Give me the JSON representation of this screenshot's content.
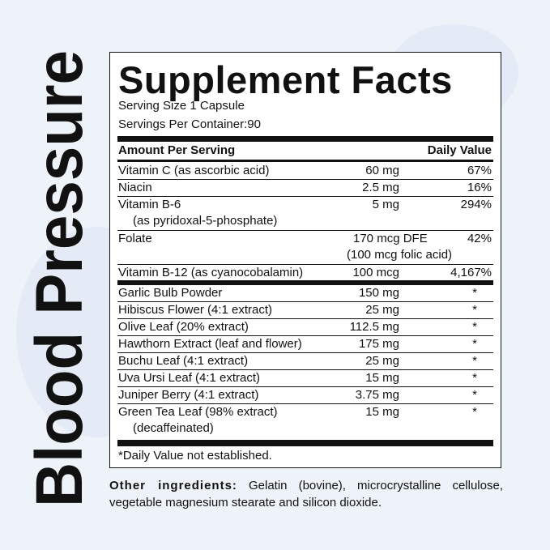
{
  "side_title": "Blood Pressure",
  "title": "Supplement Facts",
  "serving_size": "Serving Size 1 Capsule",
  "servings_per_container": "Servings Per Container:90",
  "header": {
    "amount": "Amount Per Serving",
    "dv": "Daily Value"
  },
  "vitamins": [
    {
      "name": "Vitamin C (as ascorbic acid)",
      "amount": "60 mg",
      "dv": "67%"
    },
    {
      "name": "Niacin",
      "amount": "2.5 mg",
      "dv": "16%"
    },
    {
      "name": "Vitamin B-6",
      "sub": "(as pyridoxal-5-phosphate)",
      "amount": "5 mg",
      "dv": "294%"
    },
    {
      "name": "Folate",
      "amount": "170 mcg DFE",
      "amount_sub": "(100 mcg folic acid)",
      "dv": "42%"
    },
    {
      "name": "Vitamin B-12 (as cyanocobalamin)",
      "amount": "100 mcg",
      "dv": "4,167%"
    }
  ],
  "herbs": [
    {
      "name": "Garlic Bulb Powder",
      "amount": "150 mg",
      "dv": "*"
    },
    {
      "name": "Hibiscus Flower (4:1 extract)",
      "amount": "25 mg",
      "dv": "*"
    },
    {
      "name": "Olive Leaf (20% extract)",
      "amount": "112.5 mg",
      "dv": "*"
    },
    {
      "name": "Hawthorn Extract (leaf and flower)",
      "amount": "175 mg",
      "dv": "*"
    },
    {
      "name": "Buchu Leaf (4:1 extract)",
      "amount": "25 mg",
      "dv": "*"
    },
    {
      "name": "Uva Ursi Leaf (4:1 extract)",
      "amount": "15 mg",
      "dv": "*"
    },
    {
      "name": "Juniper Berry (4:1 extract)",
      "amount": "3.75 mg",
      "dv": "*"
    },
    {
      "name": "Green Tea Leaf (98% extract)",
      "sub": "(decaffeinated)",
      "amount": "15 mg",
      "dv": "*"
    }
  ],
  "footnote": "*Daily Value not established.",
  "other": {
    "label": "Other ingredients:",
    "text": " Gelatin (bovine), microcrystalline cellulose, vegetable magnesium stearate and silicon dioxide."
  }
}
